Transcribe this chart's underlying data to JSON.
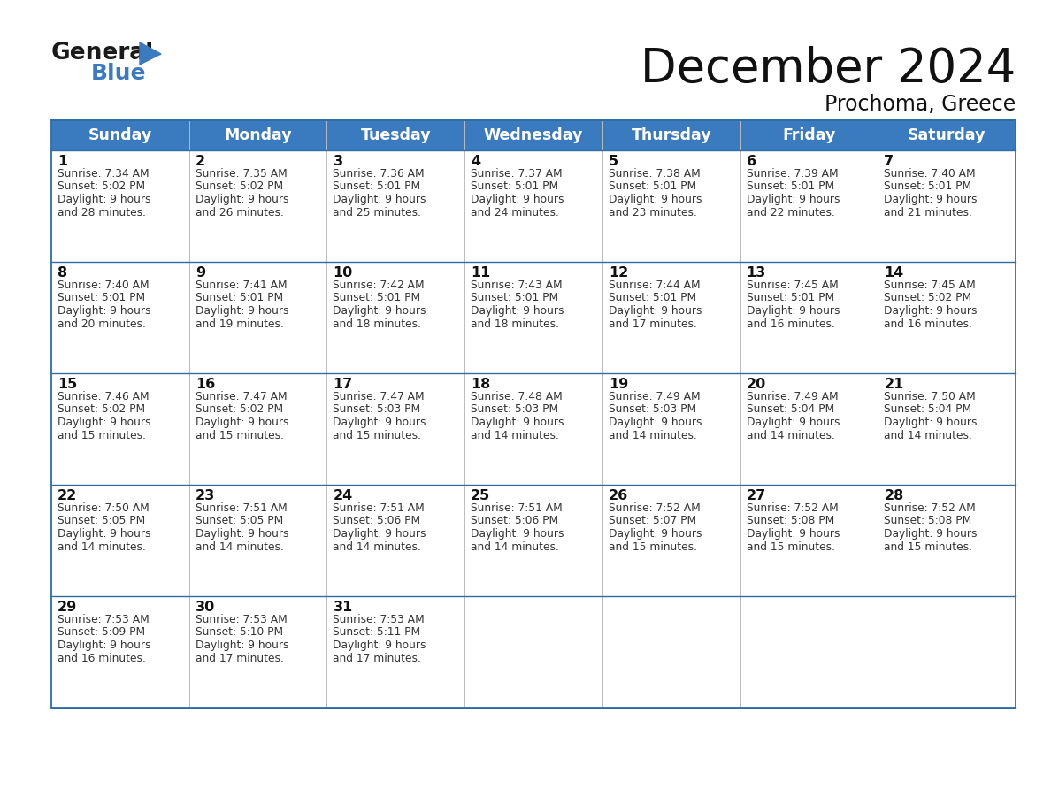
{
  "title": "December 2024",
  "subtitle": "Prochoma, Greece",
  "header_color": "#3a7bbf",
  "header_text_color": "#ffffff",
  "border_color": "#2e6da4",
  "text_color": "#333333",
  "days_of_week": [
    "Sunday",
    "Monday",
    "Tuesday",
    "Wednesday",
    "Thursday",
    "Friday",
    "Saturday"
  ],
  "calendar_data": [
    [
      {
        "day": 1,
        "sunrise": "7:34 AM",
        "sunset": "5:02 PM",
        "daylight": "9 hours and 28 minutes."
      },
      {
        "day": 2,
        "sunrise": "7:35 AM",
        "sunset": "5:02 PM",
        "daylight": "9 hours and 26 minutes."
      },
      {
        "day": 3,
        "sunrise": "7:36 AM",
        "sunset": "5:01 PM",
        "daylight": "9 hours and 25 minutes."
      },
      {
        "day": 4,
        "sunrise": "7:37 AM",
        "sunset": "5:01 PM",
        "daylight": "9 hours and 24 minutes."
      },
      {
        "day": 5,
        "sunrise": "7:38 AM",
        "sunset": "5:01 PM",
        "daylight": "9 hours and 23 minutes."
      },
      {
        "day": 6,
        "sunrise": "7:39 AM",
        "sunset": "5:01 PM",
        "daylight": "9 hours and 22 minutes."
      },
      {
        "day": 7,
        "sunrise": "7:40 AM",
        "sunset": "5:01 PM",
        "daylight": "9 hours and 21 minutes."
      }
    ],
    [
      {
        "day": 8,
        "sunrise": "7:40 AM",
        "sunset": "5:01 PM",
        "daylight": "9 hours and 20 minutes."
      },
      {
        "day": 9,
        "sunrise": "7:41 AM",
        "sunset": "5:01 PM",
        "daylight": "9 hours and 19 minutes."
      },
      {
        "day": 10,
        "sunrise": "7:42 AM",
        "sunset": "5:01 PM",
        "daylight": "9 hours and 18 minutes."
      },
      {
        "day": 11,
        "sunrise": "7:43 AM",
        "sunset": "5:01 PM",
        "daylight": "9 hours and 18 minutes."
      },
      {
        "day": 12,
        "sunrise": "7:44 AM",
        "sunset": "5:01 PM",
        "daylight": "9 hours and 17 minutes."
      },
      {
        "day": 13,
        "sunrise": "7:45 AM",
        "sunset": "5:01 PM",
        "daylight": "9 hours and 16 minutes."
      },
      {
        "day": 14,
        "sunrise": "7:45 AM",
        "sunset": "5:02 PM",
        "daylight": "9 hours and 16 minutes."
      }
    ],
    [
      {
        "day": 15,
        "sunrise": "7:46 AM",
        "sunset": "5:02 PM",
        "daylight": "9 hours and 15 minutes."
      },
      {
        "day": 16,
        "sunrise": "7:47 AM",
        "sunset": "5:02 PM",
        "daylight": "9 hours and 15 minutes."
      },
      {
        "day": 17,
        "sunrise": "7:47 AM",
        "sunset": "5:03 PM",
        "daylight": "9 hours and 15 minutes."
      },
      {
        "day": 18,
        "sunrise": "7:48 AM",
        "sunset": "5:03 PM",
        "daylight": "9 hours and 14 minutes."
      },
      {
        "day": 19,
        "sunrise": "7:49 AM",
        "sunset": "5:03 PM",
        "daylight": "9 hours and 14 minutes."
      },
      {
        "day": 20,
        "sunrise": "7:49 AM",
        "sunset": "5:04 PM",
        "daylight": "9 hours and 14 minutes."
      },
      {
        "day": 21,
        "sunrise": "7:50 AM",
        "sunset": "5:04 PM",
        "daylight": "9 hours and 14 minutes."
      }
    ],
    [
      {
        "day": 22,
        "sunrise": "7:50 AM",
        "sunset": "5:05 PM",
        "daylight": "9 hours and 14 minutes."
      },
      {
        "day": 23,
        "sunrise": "7:51 AM",
        "sunset": "5:05 PM",
        "daylight": "9 hours and 14 minutes."
      },
      {
        "day": 24,
        "sunrise": "7:51 AM",
        "sunset": "5:06 PM",
        "daylight": "9 hours and 14 minutes."
      },
      {
        "day": 25,
        "sunrise": "7:51 AM",
        "sunset": "5:06 PM",
        "daylight": "9 hours and 14 minutes."
      },
      {
        "day": 26,
        "sunrise": "7:52 AM",
        "sunset": "5:07 PM",
        "daylight": "9 hours and 15 minutes."
      },
      {
        "day": 27,
        "sunrise": "7:52 AM",
        "sunset": "5:08 PM",
        "daylight": "9 hours and 15 minutes."
      },
      {
        "day": 28,
        "sunrise": "7:52 AM",
        "sunset": "5:08 PM",
        "daylight": "9 hours and 15 minutes."
      }
    ],
    [
      {
        "day": 29,
        "sunrise": "7:53 AM",
        "sunset": "5:09 PM",
        "daylight": "9 hours and 16 minutes."
      },
      {
        "day": 30,
        "sunrise": "7:53 AM",
        "sunset": "5:10 PM",
        "daylight": "9 hours and 17 minutes."
      },
      {
        "day": 31,
        "sunrise": "7:53 AM",
        "sunset": "5:11 PM",
        "daylight": "9 hours and 17 minutes."
      },
      null,
      null,
      null,
      null
    ]
  ]
}
